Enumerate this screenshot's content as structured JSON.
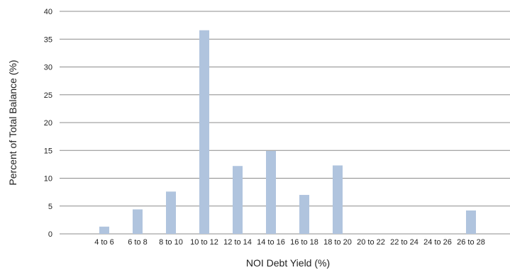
{
  "chart_data": {
    "type": "bar",
    "title": "",
    "xlabel": "NOI Debt Yield (%)",
    "ylabel": "Percent of Total Balance (%)",
    "ylim": [
      0,
      40
    ],
    "yticks": [
      0,
      5,
      10,
      15,
      20,
      25,
      30,
      35,
      40
    ],
    "grid": "horizontal",
    "categories": [
      "4 to 6",
      "6 to 8",
      "8 to 10",
      "10 to 12",
      "12 to 14",
      "14 to 16",
      "16 to 18",
      "18 to 20",
      "20 to 22",
      "22 to 24",
      "24 to 26",
      "26 to 28"
    ],
    "values": [
      1.3,
      4.4,
      7.6,
      36.6,
      12.2,
      14.9,
      7.0,
      12.3,
      0,
      0,
      0,
      4.2
    ],
    "bar_color": "#b0c4de",
    "grid_color": "#8c8c8c"
  }
}
